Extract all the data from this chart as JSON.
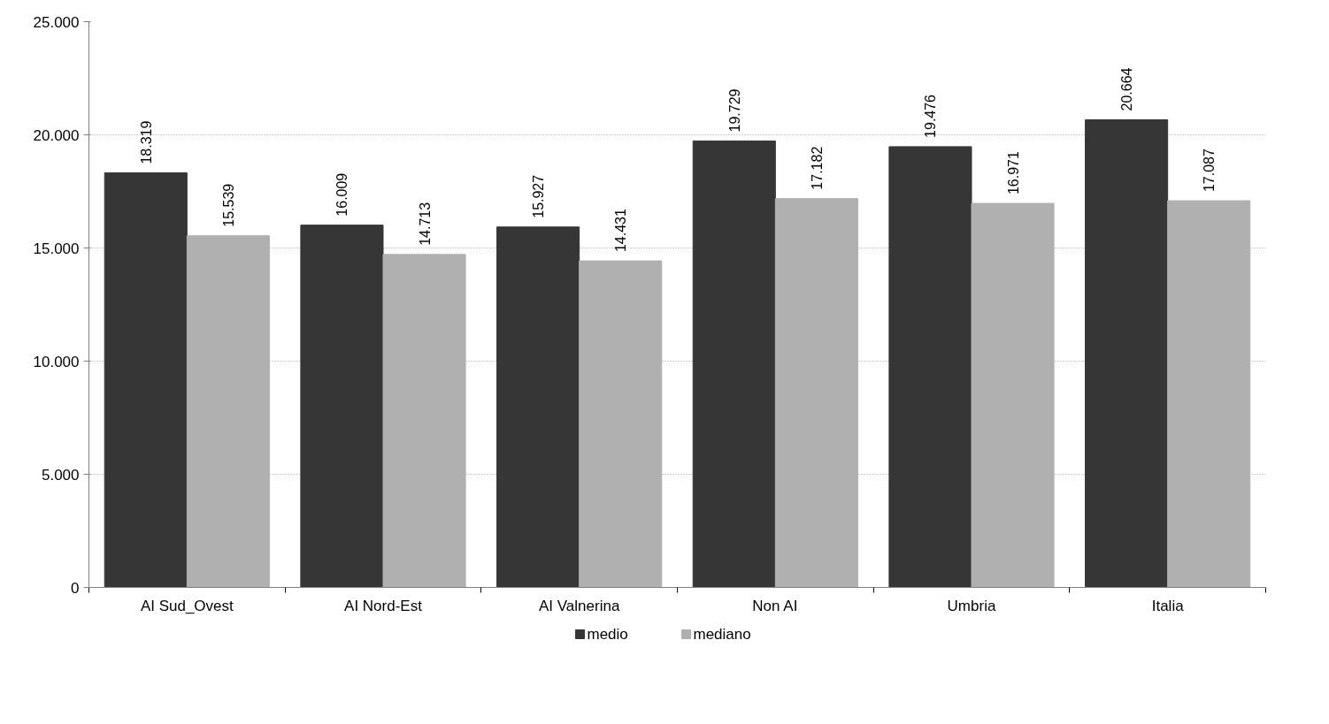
{
  "chart_data": {
    "type": "bar",
    "categories": [
      "AI Sud_Ovest",
      "AI Nord-Est",
      "AI Valnerina",
      "Non AI",
      "Umbria",
      "Italia"
    ],
    "series": [
      {
        "name": "medio",
        "color": "#363636",
        "values": [
          18319,
          16009,
          15927,
          19729,
          19476,
          20664
        ],
        "value_labels": [
          "18.319",
          "16.009",
          "15.927",
          "19.729",
          "19.476",
          "20.664"
        ]
      },
      {
        "name": "mediano",
        "color": "#b0b0b0",
        "values": [
          15539,
          14713,
          14431,
          17182,
          16971,
          17087
        ],
        "value_labels": [
          "15.539",
          "14.713",
          "14.431",
          "17.182",
          "16.971",
          "17.087"
        ]
      }
    ],
    "ylim": [
      0,
      25000
    ],
    "yticks": [
      {
        "value": 0,
        "label": "0"
      },
      {
        "value": 5000,
        "label": "5.000"
      },
      {
        "value": 10000,
        "label": "10.000"
      },
      {
        "value": 15000,
        "label": "15.000"
      },
      {
        "value": 20000,
        "label": "20.000"
      },
      {
        "value": 25000,
        "label": "25.000"
      }
    ],
    "grid": "y",
    "legend": "bottom"
  }
}
